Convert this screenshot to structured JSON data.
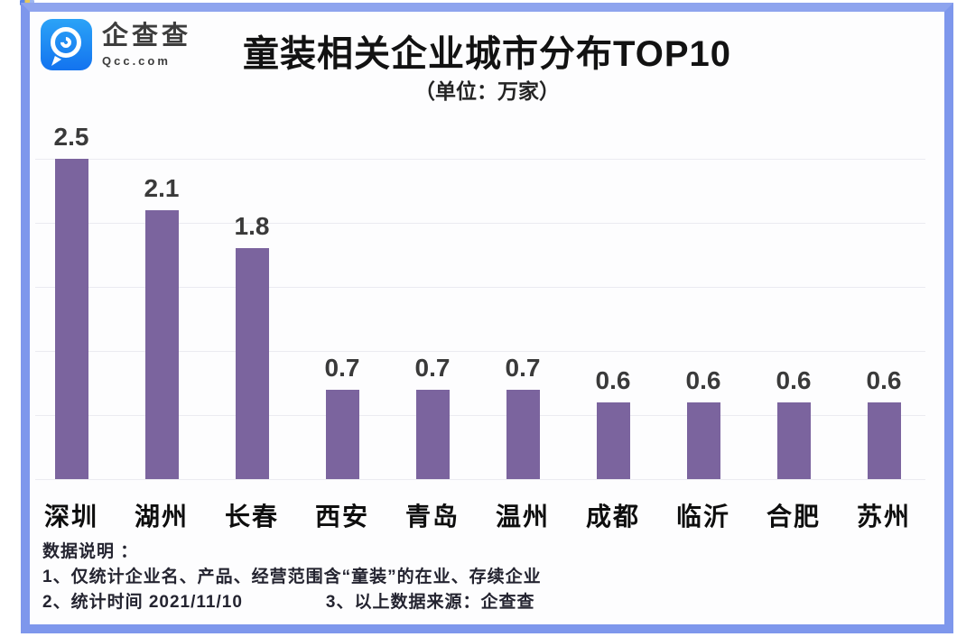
{
  "window": {
    "frame_color": "#7e97ec",
    "background": "#ffffff"
  },
  "logo": {
    "brand": "企查查",
    "domain": "Qcc.com",
    "icon": "qcc-magnifier-icon",
    "icon_color": "#1e8bf3"
  },
  "header": {
    "title": "童装相关企业城市分布TOP10",
    "subtitle": "（单位：万家）"
  },
  "chart_data": {
    "type": "bar",
    "title": "童装相关企业城市分布TOP10",
    "subtitle": "（单位：万家）",
    "unit": "万家",
    "categories": [
      "深圳",
      "湖州",
      "长春",
      "西安",
      "青岛",
      "温州",
      "成都",
      "临沂",
      "合肥",
      "苏州"
    ],
    "values": [
      2.5,
      2.1,
      1.8,
      0.7,
      0.7,
      0.7,
      0.6,
      0.6,
      0.6,
      0.6
    ],
    "ylim": [
      0,
      2.5
    ],
    "gridline_values": [
      0,
      0.5,
      1.0,
      1.5,
      2.0,
      2.5
    ],
    "grid": true,
    "legend": false,
    "bar_color": "#7b649e",
    "gridline_color": "#ebebf1",
    "value_label_color": "#3a3a3a",
    "category_label_color": "#0e0e0e"
  },
  "footnotes": {
    "heading": "数据说明 ：",
    "line1": "1、仅统计企业名、产品、经营范围含“童装”的在业、存续企业",
    "line2_left": "2、统计时间  2021/11/10",
    "line2_right": "3、以上数据来源：企查查"
  }
}
